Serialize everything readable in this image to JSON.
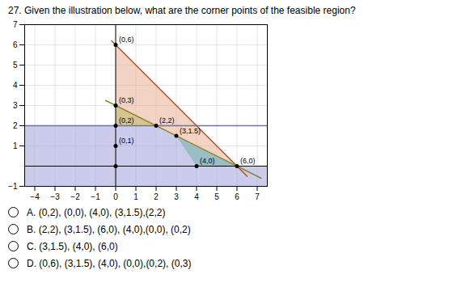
{
  "chart_data": {
    "type": "feasible_region",
    "title": "27. Given the illustration below, what are the corner points of the feasible region?",
    "xlim": [
      -4.5,
      7.5
    ],
    "ylim": [
      -1.0,
      7.0
    ],
    "xticks": [
      -4,
      -3,
      -2,
      -1,
      0,
      1,
      2,
      3,
      4,
      5,
      6,
      7
    ],
    "yticks": [
      -1,
      1,
      2,
      3,
      4,
      5,
      6,
      7
    ],
    "grid": true,
    "regions": [
      {
        "vertices": [
          [
            0,
            6
          ],
          [
            6,
            0
          ],
          [
            4,
            0
          ],
          [
            3,
            1.5
          ],
          [
            2,
            2
          ],
          [
            0,
            2
          ],
          [
            0,
            6
          ]
        ],
        "color": "#e8a888"
      },
      {
        "vertices": [
          [
            0,
            3
          ],
          [
            2,
            2
          ],
          [
            0,
            2
          ],
          [
            0,
            3
          ]
        ],
        "color": "#b8b860"
      },
      {
        "vertices": [
          [
            0,
            2
          ],
          [
            2,
            2
          ],
          [
            3,
            1.5
          ],
          [
            6,
            0
          ],
          [
            7.5,
            0
          ],
          [
            7.5,
            -1.0
          ],
          [
            -4.5,
            -1.0
          ],
          [
            -4.5,
            2
          ],
          [
            0,
            2
          ]
        ],
        "color": "#9898d8"
      },
      {
        "vertices": [
          [
            3,
            1.5
          ],
          [
            4,
            0
          ],
          [
            6,
            0
          ],
          [
            3,
            1.5
          ]
        ],
        "color": "#70c8c0"
      }
    ],
    "lines": [
      {
        "x": [
          -0.2,
          6.5
        ],
        "y": [
          6.2,
          -0.5
        ],
        "color": "#b05030"
      },
      {
        "x": [
          -0.5,
          7.2
        ],
        "y": [
          3.25,
          -0.6
        ],
        "color": "#888830"
      },
      {
        "x": [
          -4.5,
          7.5
        ],
        "y": [
          2,
          2
        ],
        "color": "#7070b0"
      }
    ],
    "points": [
      {
        "x": 0,
        "y": 6,
        "label": "(0,6)"
      },
      {
        "x": 0,
        "y": 3,
        "label": "(0,3)"
      },
      {
        "x": 0,
        "y": 2,
        "label": "(0,2)"
      },
      {
        "x": 2,
        "y": 2,
        "label": "(2,2)"
      },
      {
        "x": 3,
        "y": 1.5,
        "label": "(3,1.5)"
      },
      {
        "x": 4,
        "y": 0,
        "label": "(4,0)"
      },
      {
        "x": 6,
        "y": 0,
        "label": "(6,0)"
      },
      {
        "x": 0,
        "y": 1,
        "label": "(0,1)"
      },
      {
        "x": 0,
        "y": 0
      }
    ],
    "annotations": [
      "A. (0,2), (0,0), (4,0), (3,1.5),(2,2)",
      "B. (2,2), (3,1.5), (6,0), (4,0),(0,0), (0,2)",
      "C. (3,1.5), (4,0), (6,0)",
      "D. (0,6), (3,1.5), (4,0), (0,0),(0,2), (0,3)"
    ]
  }
}
